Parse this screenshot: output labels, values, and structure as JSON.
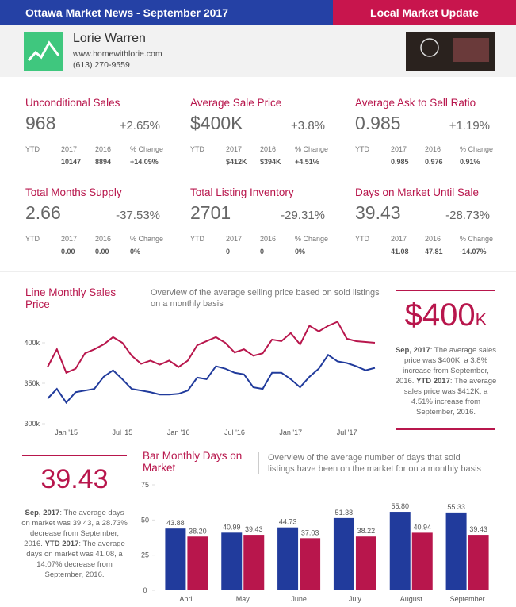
{
  "header": {
    "title": "Ottawa Market News - September 2017",
    "badge": "Local Market Update"
  },
  "agent": {
    "name": "Lorie Warren",
    "website": "www.homewithlorie.com",
    "phone": "(613) 270-9559"
  },
  "ytd_headers": [
    "YTD",
    "2017",
    "2016",
    "% Change"
  ],
  "stats": [
    {
      "label": "Unconditional Sales",
      "value": "968",
      "change": "+2.65%",
      "ytd": [
        "10147",
        "8894",
        "+14.09%"
      ]
    },
    {
      "label": "Average Sale Price",
      "value": "$400K",
      "change": "+3.8%",
      "ytd": [
        "$412K",
        "$394K",
        "+4.51%"
      ]
    },
    {
      "label": "Average Ask to Sell Ratio",
      "value": "0.985",
      "change": "+1.19%",
      "ytd": [
        "0.985",
        "0.976",
        "0.91%"
      ]
    },
    {
      "label": "Total Months Supply",
      "value": "2.66",
      "change": "-37.53%",
      "ytd": [
        "0.00",
        "0.00",
        "0%"
      ]
    },
    {
      "label": "Total Listing Inventory",
      "value": "2701",
      "change": "-29.31%",
      "ytd": [
        "0",
        "0",
        "0%"
      ]
    },
    {
      "label": "Days on Market Until Sale",
      "value": "39.43",
      "change": "-28.73%",
      "ytd": [
        "41.08",
        "47.81",
        "-14.07%"
      ]
    }
  ],
  "price_callout": {
    "big_value": "$400",
    "big_unit": "K",
    "summary": [
      "Sep, 2017",
      ": The average sales price was $400K, a 3.8% increase from September, 2016. ",
      "YTD 2017",
      ": The average sales price was $412K, a 4.51% increase from September, 2016."
    ]
  },
  "dom_callout": {
    "big_value": "39.43",
    "summary": [
      "Sep, 2017",
      ": The average days on market was 39.43, a 28.73% decrease from September, 2016. ",
      "YTD 2017",
      ": The average days on market was 41.08, a 14.07% decrease from September, 2016."
    ]
  },
  "chart_data": [
    {
      "type": "line",
      "title": "Line Monthly Sales Price",
      "description": "Overview of the average selling price based on sold listings on a monthly basis",
      "categories": [
        null,
        null,
        "Jan '15",
        null,
        null,
        null,
        null,
        null,
        "Jul '15",
        null,
        null,
        null,
        null,
        null,
        "Jan '16",
        null,
        null,
        null,
        null,
        null,
        "Jul '16",
        null,
        null,
        null,
        null,
        null,
        "Jan '17",
        null,
        null,
        null,
        null,
        null,
        "Jul '17",
        null,
        null,
        null
      ],
      "series": [
        {
          "color": "#b8164c",
          "values": [
            370,
            392,
            363,
            368,
            387,
            392,
            398,
            407,
            400,
            384,
            374,
            378,
            373,
            378,
            370,
            378,
            397,
            402,
            407,
            400,
            388,
            392,
            384,
            387,
            404,
            402,
            412,
            398,
            421,
            414,
            421,
            426,
            405,
            402,
            401,
            400
          ]
        },
        {
          "color": "#213b9c",
          "values": [
            331,
            343,
            326,
            339,
            341,
            343,
            358,
            366,
            355,
            343,
            341,
            339,
            336,
            336,
            337,
            341,
            357,
            355,
            371,
            368,
            363,
            361,
            345,
            343,
            363,
            363,
            355,
            345,
            358,
            368,
            385,
            377,
            375,
            371,
            366,
            369
          ]
        }
      ],
      "ylim": [
        300,
        430
      ],
      "yticks": [
        {
          "value": 300,
          "label": "300k"
        },
        {
          "value": 350,
          "label": "350k"
        },
        {
          "value": 400,
          "label": "400k"
        }
      ],
      "grid": false
    },
    {
      "type": "bar",
      "title": "Bar Monthly Days on Market",
      "description": "Overview of the average number of days that sold listings have been on the market for on a monthly basis",
      "categories": [
        "April",
        "May",
        "June",
        "July",
        "August",
        "September"
      ],
      "series": [
        {
          "color": "#213b9c",
          "values": [
            43.88,
            40.99,
            44.73,
            51.38,
            55.8,
            55.33
          ],
          "value_labels": [
            "43.88",
            "40.99",
            "44.73",
            "51.38",
            "55.80",
            "55.33"
          ]
        },
        {
          "color": "#b8164c",
          "values": [
            38.2,
            39.43,
            37.03,
            38.22,
            40.94,
            39.43
          ],
          "value_labels": [
            "38.20",
            "39.43",
            "37.03",
            "38.22",
            "40.94",
            "39.43"
          ]
        }
      ],
      "ylim": [
        0,
        75
      ],
      "yticks": [
        0,
        25,
        50,
        75
      ],
      "grid": false
    }
  ]
}
